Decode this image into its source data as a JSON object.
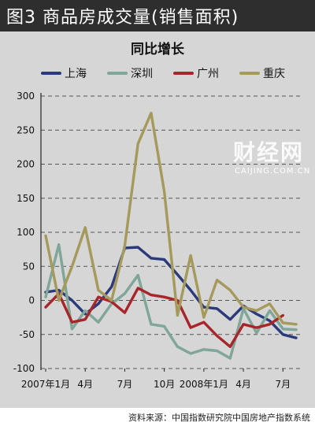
{
  "header": {
    "title": "图3  商品房成交量(销售面积)"
  },
  "source": "资料来源：中国指数研究院中国房地产指数系统",
  "watermark": {
    "big": "财经网",
    "small": "CAIJING.COM.CN"
  },
  "colors": {
    "shanghai": "#2a3a7a",
    "shenzhen": "#7fa698",
    "guangzhou": "#a8262a",
    "chongqing": "#a59a5c"
  },
  "chart_data": {
    "type": "line",
    "title": "同比增长",
    "ylim": [
      -100,
      300
    ],
    "yticks": [
      300,
      250,
      200,
      150,
      100,
      50,
      0,
      -50,
      -100
    ],
    "x_tick_labels": [
      {
        "label": "2007年1月",
        "index": 0
      },
      {
        "label": "4月",
        "index": 3
      },
      {
        "label": "7月",
        "index": 6
      },
      {
        "label": "10月",
        "index": 9
      },
      {
        "label": "2008年1月",
        "index": 12
      },
      {
        "label": "4月",
        "index": 15
      },
      {
        "label": "7月",
        "index": 18
      }
    ],
    "x": [
      "2007-01",
      "2007-02",
      "2007-03",
      "2007-04",
      "2007-05",
      "2007-06",
      "2007-07",
      "2007-08",
      "2007-09",
      "2007-10",
      "2007-11",
      "2007-12",
      "2008-01",
      "2008-02",
      "2008-03",
      "2008-04",
      "2008-05",
      "2008-06",
      "2008-07",
      "2008-08"
    ],
    "series": [
      {
        "name": "上海",
        "color": "#2a3a7a",
        "values": [
          12,
          15,
          0,
          -20,
          -5,
          20,
          77,
          78,
          62,
          60,
          38,
          15,
          -10,
          -12,
          -28,
          -8,
          -20,
          -30,
          -50,
          -55
        ]
      },
      {
        "name": "深圳",
        "color": "#7fa698",
        "values": [
          5,
          82,
          -42,
          -15,
          -32,
          -5,
          10,
          37,
          -35,
          -38,
          -68,
          -78,
          -72,
          -74,
          -85,
          -12,
          -48,
          -15,
          -42,
          -43
        ]
      },
      {
        "name": "广州",
        "color": "#a8262a",
        "values": [
          -10,
          10,
          -32,
          -28,
          5,
          -2,
          -18,
          18,
          8,
          5,
          0,
          -40,
          -32,
          -52,
          -68,
          -35,
          -40,
          -35,
          -22,
          null
        ]
      },
      {
        "name": "重庆",
        "color": "#a59a5c",
        "values": [
          95,
          0,
          50,
          107,
          15,
          0,
          80,
          230,
          275,
          160,
          -22,
          66,
          -25,
          30,
          15,
          -10,
          -15,
          -5,
          -33,
          -35
        ]
      }
    ],
    "grid": "horizontal-dashed",
    "legend": "top"
  }
}
